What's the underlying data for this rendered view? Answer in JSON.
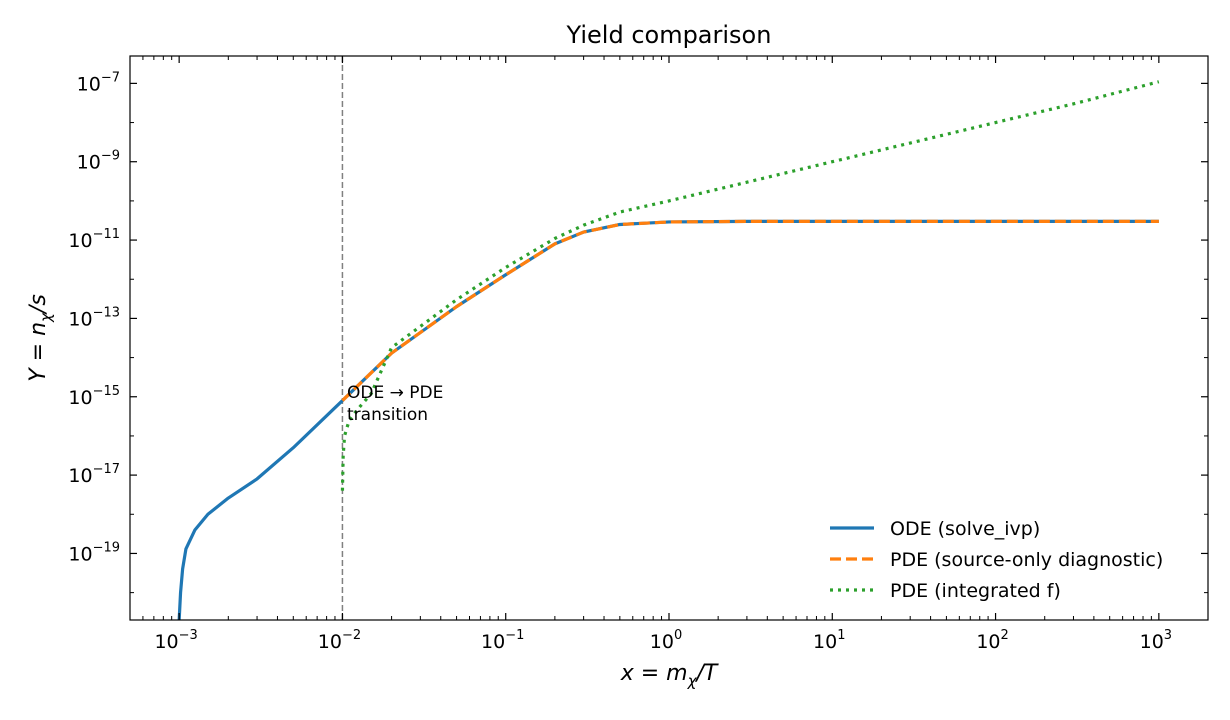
{
  "chart_data": {
    "type": "line",
    "title": "Yield comparison",
    "xlabel": "x = m_χ/T",
    "ylabel": "Y = n_χ/s",
    "xscale": "log",
    "yscale": "log",
    "xlim": [
      0.0005,
      2000
    ],
    "ylim": [
      2e-21,
      5e-07
    ],
    "x_tick_labels": [
      "10^-3",
      "10^-2",
      "10^-1",
      "10^0",
      "10^1",
      "10^2",
      "10^3"
    ],
    "y_tick_labels": [
      "10^-19",
      "10^-17",
      "10^-15",
      "10^-13",
      "10^-11",
      "10^-9",
      "10^-7"
    ],
    "grid": false,
    "legend_position": "lower right",
    "annotation": {
      "text_line1": "ODE → PDE",
      "text_line2": "transition",
      "x": 0.01,
      "y": 8e-16
    },
    "vline": {
      "x": 0.01,
      "style": "dashed",
      "color": "#808080"
    },
    "series": [
      {
        "name": "ODE (solve_ivp)",
        "color": "#1f77b4",
        "style": "solid",
        "points": [
          [
            0.001,
            2e-21
          ],
          [
            0.00102,
            1e-20
          ],
          [
            0.00105,
            4e-20
          ],
          [
            0.0011,
            1.3e-19
          ],
          [
            0.00125,
            4e-19
          ],
          [
            0.0015,
            1e-18
          ],
          [
            0.002,
            2.6e-18
          ],
          [
            0.003,
            8e-18
          ],
          [
            0.005,
            5e-17
          ],
          [
            0.01,
            8e-16
          ],
          [
            0.02,
            1.3e-14
          ],
          [
            0.05,
            2e-13
          ],
          [
            0.1,
            1.3e-12
          ],
          [
            0.2,
            8e-12
          ],
          [
            0.3,
            1.6e-11
          ],
          [
            0.5,
            2.5e-11
          ],
          [
            1,
            2.9e-11
          ],
          [
            3,
            3e-11
          ],
          [
            10,
            3e-11
          ],
          [
            100,
            3e-11
          ],
          [
            1000,
            3e-11
          ]
        ]
      },
      {
        "name": "PDE (source-only diagnostic)",
        "color": "#ff7f0e",
        "style": "dashed",
        "points": [
          [
            0.01,
            8e-16
          ],
          [
            0.02,
            1.3e-14
          ],
          [
            0.05,
            2e-13
          ],
          [
            0.1,
            1.3e-12
          ],
          [
            0.2,
            8e-12
          ],
          [
            0.3,
            1.6e-11
          ],
          [
            0.5,
            2.5e-11
          ],
          [
            1,
            2.9e-11
          ],
          [
            3,
            3e-11
          ],
          [
            10,
            3e-11
          ],
          [
            100,
            3e-11
          ],
          [
            1000,
            3e-11
          ]
        ]
      },
      {
        "name": "PDE (integrated f)",
        "color": "#2ca02c",
        "style": "dotted",
        "points": [
          [
            0.01,
            4e-18
          ],
          [
            0.0101,
            3e-17
          ],
          [
            0.0103,
            1e-16
          ],
          [
            0.011,
            2.5e-16
          ],
          [
            0.0125,
            5e-16
          ],
          [
            0.015,
            1.2e-15
          ],
          [
            0.02,
            1.8e-14
          ],
          [
            0.05,
            3e-13
          ],
          [
            0.1,
            2e-12
          ],
          [
            0.2,
            1.1e-11
          ],
          [
            0.3,
            2.4e-11
          ],
          [
            0.5,
            5.2e-11
          ],
          [
            1,
            1e-10
          ],
          [
            3,
            3e-10
          ],
          [
            10,
            1e-09
          ],
          [
            30,
            3e-09
          ],
          [
            100,
            1e-08
          ],
          [
            300,
            3e-08
          ],
          [
            1000,
            1.1e-07
          ]
        ]
      }
    ]
  }
}
